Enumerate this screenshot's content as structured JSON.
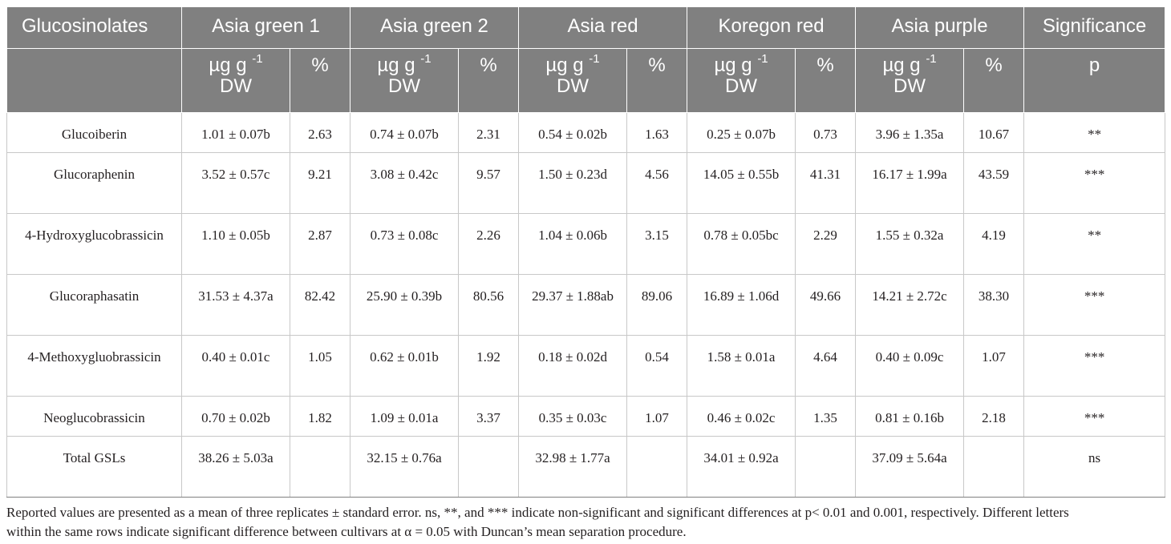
{
  "table": {
    "header": {
      "first_col": "Glucosinolates",
      "cultivars": [
        "Asia green 1",
        "Asia green 2",
        "Asia red",
        "Koregon red",
        "Asia purple"
      ],
      "significance": "Significance",
      "unit_main": "µg g",
      "unit_exp": "-1",
      "unit_tail": "DW",
      "percent": "%",
      "p": "p"
    },
    "rows": [
      {
        "name": "Glucoiberin",
        "cells": [
          "1.01 ± 0.07b",
          "2.63",
          "0.74 ± 0.07b",
          "2.31",
          "0.54 ± 0.02b",
          "1.63",
          "0.25 ± 0.07b",
          "0.73",
          "3.96 ± 1.35a",
          "10.67",
          "**"
        ]
      },
      {
        "name": "Glucoraphenin",
        "cells": [
          "3.52 ± 0.57c",
          "9.21",
          "3.08 ± 0.42c",
          "9.57",
          "1.50 ± 0.23d",
          "4.56",
          "14.05 ± 0.55b",
          "41.31",
          "16.17 ± 1.99a",
          "43.59",
          "***"
        ]
      },
      {
        "name": "4-Hydroxyglucobrassicin",
        "cells": [
          "1.10 ± 0.05b",
          "2.87",
          "0.73 ± 0.08c",
          "2.26",
          "1.04 ± 0.06b",
          "3.15",
          "0.78 ± 0.05bc",
          "2.29",
          "1.55 ± 0.32a",
          "4.19",
          "**"
        ]
      },
      {
        "name": "Glucoraphasatin",
        "cells": [
          "31.53 ± 4.37a",
          "82.42",
          "25.90 ± 0.39b",
          "80.56",
          "29.37 ± 1.88ab",
          "89.06",
          "16.89 ± 1.06d",
          "49.66",
          "14.21 ± 2.72c",
          "38.30",
          "***"
        ]
      },
      {
        "name": "4-Methoxygluobrassicin",
        "cells": [
          "0.40 ± 0.01c",
          "1.05",
          "0.62 ± 0.01b",
          "1.92",
          "0.18 ± 0.02d",
          "0.54",
          "1.58 ± 0.01a",
          "4.64",
          "0.40 ± 0.09c",
          "1.07",
          "***"
        ]
      },
      {
        "name": "Neoglucobrassicin",
        "cells": [
          "0.70 ± 0.02b",
          "1.82",
          "1.09 ± 0.01a",
          "3.37",
          "0.35 ± 0.03c",
          "1.07",
          "0.46 ± 0.02c",
          "1.35",
          "0.81 ± 0.16b",
          "2.18",
          "***"
        ]
      },
      {
        "name": "Total GSLs",
        "cells": [
          "38.26 ± 5.03a",
          "",
          "32.15 ± 0.76a",
          "",
          "32.98 ± 1.77a",
          "",
          "34.01 ± 0.92a",
          "",
          "37.09 ± 5.64a",
          "",
          "ns"
        ]
      }
    ]
  },
  "footnote": {
    "line1": "Reported values are presented as a mean of three replicates ± standard error. ns, **, and *** indicate non-significant and significant differences at p< 0.01 and 0.001, respectively. Different letters",
    "line2": "within the same rows indicate significant difference between cultivars at α = 0.05 with Duncan’s mean separation procedure."
  }
}
